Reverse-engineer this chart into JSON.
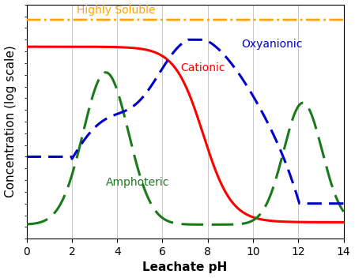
{
  "xlabel": "Leachate pH",
  "ylabel": "Concentration (log scale)",
  "xlim": [
    0,
    14
  ],
  "ylim": [
    0,
    1
  ],
  "xticks": [
    0,
    2,
    4,
    6,
    8,
    10,
    12,
    14
  ],
  "background_color": "#ffffff",
  "grid_color": "#c8c8c8",
  "highly_soluble_color": "#FFA500",
  "cationic_color": "#FF0000",
  "amphoteric_color": "#1a7a1a",
  "oxyanionic_color": "#0000CC",
  "highly_soluble_label": "Highly Soluble",
  "cationic_label": "Cationic",
  "amphoteric_label": "Amphoteric",
  "oxyanionic_label": "Oxyanionic",
  "label_fontsize": 10,
  "axis_label_fontsize": 11,
  "tick_fontsize": 10,
  "line_width": 2.2
}
